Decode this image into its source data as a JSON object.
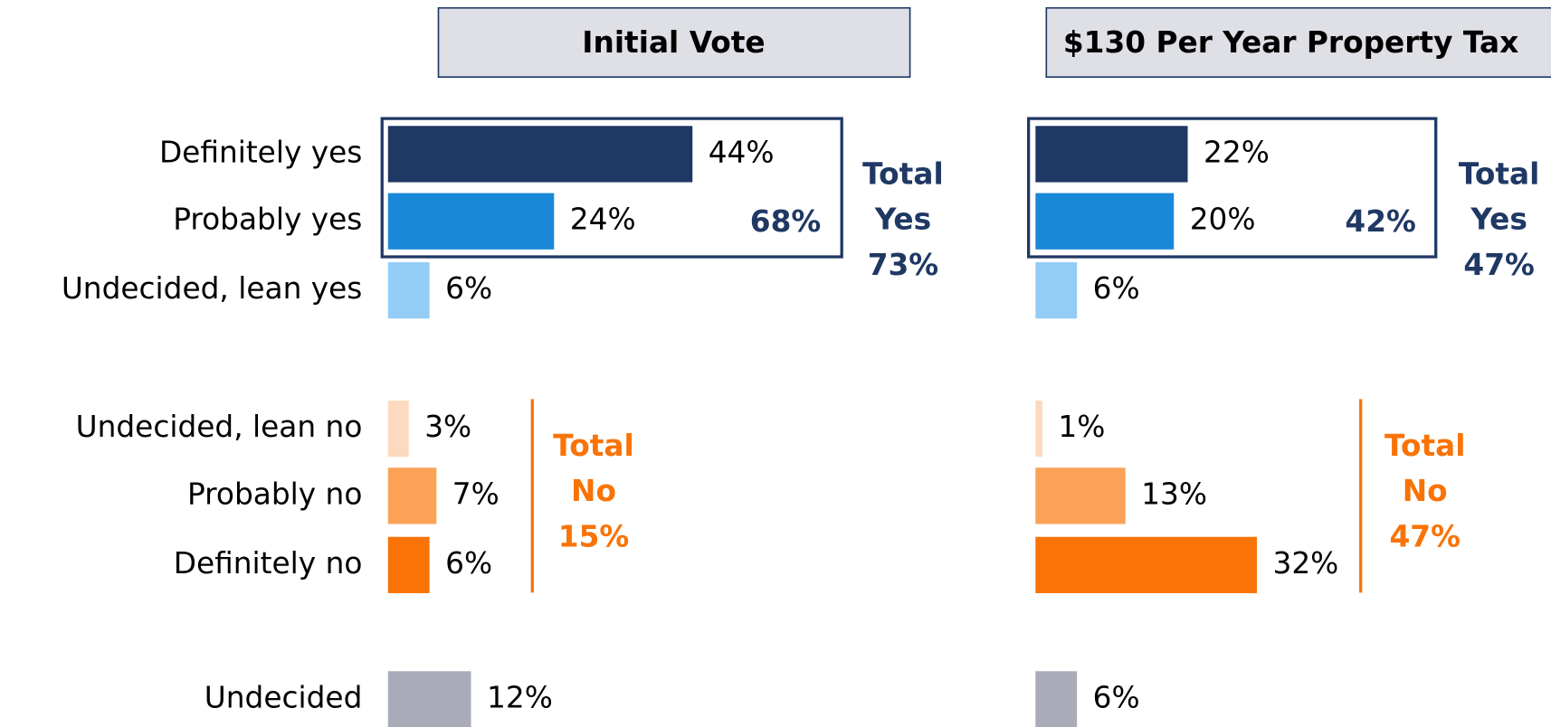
{
  "chart_data": [
    {
      "type": "bar",
      "title": "Initial Vote",
      "categories": [
        "Definitely yes",
        "Probably yes",
        "Undecided, lean yes",
        "Undecided, lean no",
        "Probably no",
        "Definitely no",
        "Undecided"
      ],
      "values": [
        44,
        24,
        6,
        3,
        7,
        6,
        12
      ],
      "value_labels": [
        "44%",
        "24%",
        "6%",
        "3%",
        "7%",
        "6%",
        "12%"
      ],
      "colors": [
        "#1f3864",
        "#1a88d8",
        "#93cdf5",
        "#fdd9bf",
        "#fba257",
        "#f97306",
        "#a9abb8"
      ],
      "yes_box_label": "68%",
      "total_yes": [
        "Total",
        "Yes",
        "73%"
      ],
      "total_no": [
        "Total",
        "No",
        "15%"
      ]
    },
    {
      "type": "bar",
      "title": "$130 Per Year Property Tax",
      "values": [
        22,
        20,
        6,
        1,
        13,
        32,
        6
      ],
      "value_labels": [
        "22%",
        "20%",
        "6%",
        "1%",
        "13%",
        "32%",
        "6%"
      ],
      "colors": [
        "#1f3864",
        "#1a88d8",
        "#93cdf5",
        "#fdd9bf",
        "#fba257",
        "#f97306",
        "#a9abb8"
      ],
      "yes_box_label": "42%",
      "total_yes": [
        "Total",
        "Yes",
        "47%"
      ],
      "total_no": [
        "Total",
        "No",
        "47%"
      ]
    }
  ]
}
